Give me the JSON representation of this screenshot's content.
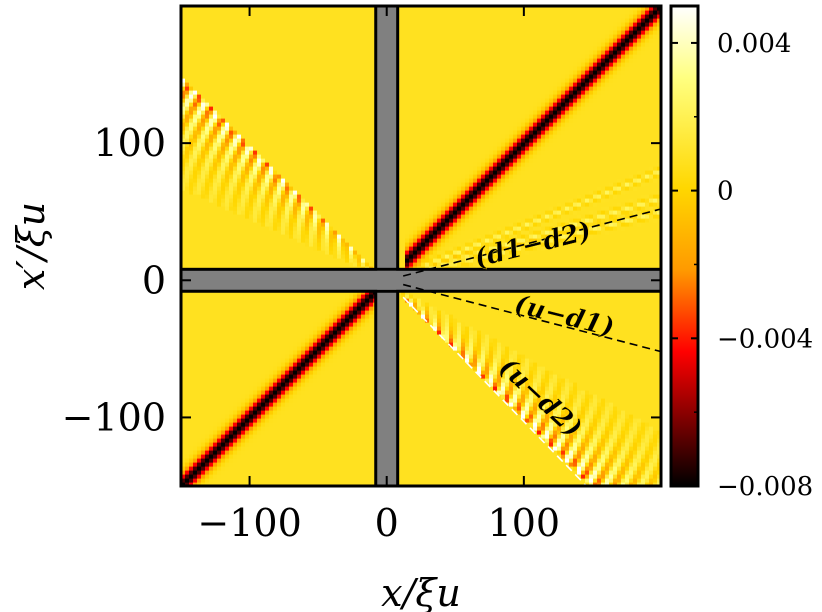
{
  "chart_data": {
    "type": "heatmap",
    "title": "",
    "xlabel": "x/ξu",
    "ylabel": "x′/ξu",
    "xlim": [
      -150,
      200
    ],
    "ylim": [
      -150,
      200
    ],
    "x_ticks": [
      {
        "value": -100,
        "label": "−100"
      },
      {
        "value": 0,
        "label": "0"
      },
      {
        "value": 100,
        "label": "100"
      }
    ],
    "y_ticks": [
      {
        "value": -100,
        "label": "−100"
      },
      {
        "value": 0,
        "label": "0"
      },
      {
        "value": 100,
        "label": "100"
      }
    ],
    "colorbar": {
      "range": [
        -0.008,
        0.005
      ],
      "ticks": [
        {
          "value": 0.004,
          "label": "0.004"
        },
        {
          "value": 0,
          "label": "0"
        },
        {
          "value": -0.004,
          "label": "−0.004"
        },
        {
          "value": -0.008,
          "label": "−0.008"
        }
      ],
      "colors": [
        "#000000",
        "#ff0000",
        "#ffd700",
        "#ffffff"
      ]
    },
    "masked_band_halfwidth": 8,
    "mask_color": "#808080",
    "background_value": 0.0008,
    "features": [
      {
        "kind": "ridge",
        "slope": 1,
        "x_range": [
          -150,
          -5
        ],
        "value": -0.008,
        "width": 4
      },
      {
        "kind": "ridge",
        "slope": 1,
        "x_range": [
          12,
          200
        ],
        "value": -0.008,
        "width": 4
      },
      {
        "kind": "oscillating_wedge",
        "x_range": [
          -150,
          -10
        ],
        "slope_from": -1,
        "slope_to": -0.45,
        "amplitude": 0.005
      },
      {
        "kind": "oscillating_wedge",
        "x_range": [
          10,
          200
        ],
        "slope_from": -1,
        "slope_to": -0.55,
        "amplitude": 0.005
      },
      {
        "kind": "faint_rays",
        "x_range": [
          10,
          200
        ],
        "slopes": [
          0.25,
          0.3,
          0.4
        ],
        "amplitude": 0.0015
      }
    ],
    "annotations": [
      {
        "label": "(d1−d2)",
        "line": "dashed",
        "slope": 0.26,
        "line_color": "#000000"
      },
      {
        "label": "(u−d1)",
        "line": "dashed",
        "slope": -0.26,
        "line_color": "#000000"
      },
      {
        "label": "(u−d2)",
        "line": "dashed",
        "slope": -1.03,
        "line_color": "#ffffff"
      }
    ]
  }
}
